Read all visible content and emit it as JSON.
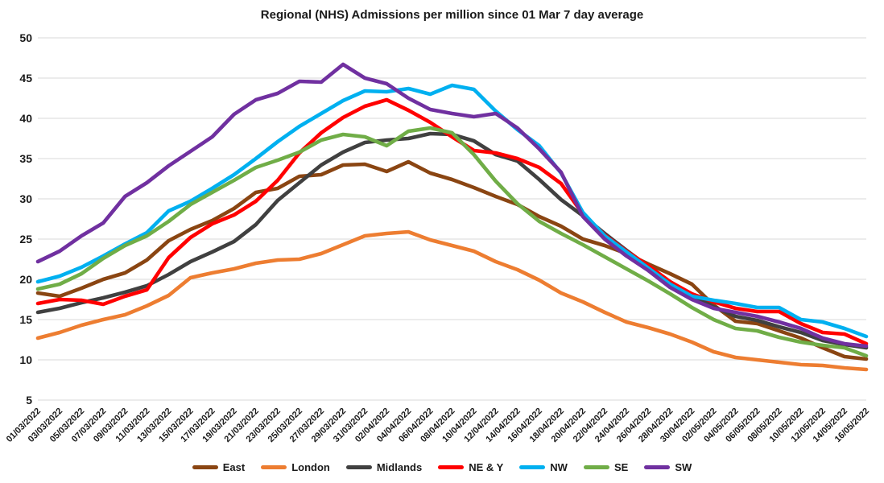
{
  "title": "Regional (NHS) Admissions per million since 01 Mar 7 day average",
  "chart_data": {
    "type": "line",
    "title": "Regional (NHS) Admissions per million since 01 Mar 7 day average",
    "xlabel": "",
    "ylabel": "",
    "ylim": [
      5,
      50
    ],
    "ytick_step": 5,
    "grid": "horizontal-only",
    "gridline_color": "#d9d9d9",
    "text_color": "#1a1a1a",
    "background": "#ffffff",
    "legend_position": "bottom",
    "x_labels": [
      "01/03/2022",
      "03/03/2022",
      "05/03/2022",
      "07/03/2022",
      "09/03/2022",
      "11/03/2022",
      "13/03/2022",
      "15/03/2022",
      "17/03/2022",
      "19/03/2022",
      "21/03/2022",
      "23/03/2022",
      "25/03/2022",
      "27/03/2022",
      "29/03/2022",
      "31/03/2022",
      "02/04/2022",
      "04/04/2022",
      "06/04/2022",
      "08/04/2022",
      "10/04/2022",
      "12/04/2022",
      "14/04/2022",
      "16/04/2022",
      "18/04/2022",
      "20/04/2022",
      "22/04/2022",
      "24/04/2022",
      "26/04/2022",
      "28/04/2022",
      "30/04/2022",
      "02/05/2022",
      "04/05/2022",
      "06/05/2022",
      "08/05/2022",
      "10/05/2022",
      "12/05/2022",
      "14/05/2022",
      "16/05/2022"
    ],
    "series": [
      {
        "name": "East",
        "color": "#8a4512",
        "values": [
          18.3,
          17.9,
          18.9,
          20.0,
          20.8,
          22.4,
          24.8,
          26.2,
          27.3,
          28.8,
          30.8,
          31.3,
          32.8,
          33.0,
          34.2,
          34.3,
          33.4,
          34.6,
          33.2,
          32.4,
          31.4,
          30.3,
          29.3,
          27.8,
          26.6,
          25.0,
          24.2,
          23.2,
          21.9,
          20.7,
          19.4,
          16.8,
          14.8,
          14.5,
          13.6,
          12.7,
          11.5,
          10.4,
          10.1
        ]
      },
      {
        "name": "London",
        "color": "#ED7D31",
        "values": [
          12.7,
          13.4,
          14.3,
          15.0,
          15.6,
          16.7,
          18.0,
          20.2,
          20.8,
          21.3,
          22.0,
          22.4,
          22.5,
          23.2,
          24.3,
          25.4,
          25.7,
          25.9,
          24.9,
          24.2,
          23.5,
          22.2,
          21.2,
          19.9,
          18.3,
          17.2,
          15.9,
          14.7,
          14.0,
          13.2,
          12.2,
          11.0,
          10.3,
          10.0,
          9.7,
          9.4,
          9.3,
          9.0,
          8.8
        ]
      },
      {
        "name": "Midlands",
        "color": "#404040",
        "values": [
          15.9,
          16.4,
          17.1,
          17.7,
          18.4,
          19.2,
          20.6,
          22.2,
          23.4,
          24.7,
          26.8,
          29.8,
          32.0,
          34.2,
          35.8,
          37.0,
          37.3,
          37.5,
          38.1,
          38.0,
          37.2,
          35.5,
          34.7,
          32.4,
          29.9,
          27.9,
          25.7,
          23.6,
          21.6,
          19.7,
          18.0,
          16.6,
          15.4,
          14.9,
          14.1,
          13.4,
          12.4,
          11.9,
          11.5
        ]
      },
      {
        "name": "NE & Y",
        "color": "#FF0000",
        "values": [
          17.0,
          17.5,
          17.4,
          16.9,
          17.9,
          18.7,
          22.7,
          25.2,
          26.9,
          28.0,
          29.7,
          32.3,
          35.7,
          38.2,
          40.1,
          41.5,
          42.3,
          41.0,
          39.5,
          37.7,
          36.0,
          35.7,
          35.0,
          33.9,
          31.9,
          28.1,
          25.5,
          23.5,
          21.7,
          19.7,
          18.2,
          17.2,
          16.4,
          16.0,
          16.0,
          14.5,
          13.4,
          13.2,
          12.0
        ]
      },
      {
        "name": "NW",
        "color": "#00B0F0",
        "values": [
          19.7,
          20.4,
          21.5,
          22.9,
          24.4,
          25.8,
          28.5,
          29.7,
          31.3,
          33.0,
          35.0,
          37.1,
          39.0,
          40.6,
          42.2,
          43.4,
          43.3,
          43.7,
          43.0,
          44.1,
          43.6,
          40.9,
          38.6,
          36.6,
          33.2,
          28.3,
          25.4,
          23.4,
          21.4,
          19.4,
          17.9,
          17.4,
          17.0,
          16.5,
          16.5,
          15.0,
          14.7,
          13.9,
          12.9
        ]
      },
      {
        "name": "SE",
        "color": "#70AD47",
        "values": [
          18.8,
          19.4,
          20.7,
          22.6,
          24.2,
          25.4,
          27.2,
          29.3,
          30.8,
          32.3,
          33.9,
          34.8,
          35.8,
          37.3,
          38.0,
          37.7,
          36.6,
          38.4,
          38.8,
          38.2,
          35.5,
          32.2,
          29.4,
          27.2,
          25.7,
          24.3,
          22.8,
          21.3,
          19.8,
          18.2,
          16.5,
          15.0,
          13.9,
          13.6,
          12.8,
          12.2,
          11.8,
          11.5,
          10.5
        ]
      },
      {
        "name": "SW",
        "color": "#7030A0",
        "values": [
          22.2,
          23.5,
          25.4,
          27.0,
          30.3,
          32.0,
          34.1,
          35.9,
          37.7,
          40.5,
          42.3,
          43.1,
          44.6,
          44.5,
          46.7,
          45.0,
          44.3,
          42.5,
          41.1,
          40.6,
          40.2,
          40.6,
          38.8,
          36.2,
          33.3,
          27.8,
          25.0,
          22.9,
          21.1,
          19.0,
          17.5,
          16.4,
          15.9,
          15.4,
          14.7,
          13.9,
          12.7,
          12.0,
          11.7
        ]
      }
    ]
  }
}
